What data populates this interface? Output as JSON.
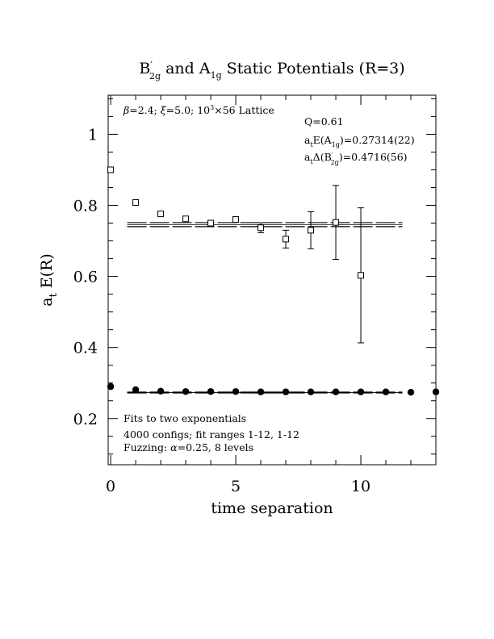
{
  "chart_data": {
    "type": "scatter",
    "title": {
      "b_base": "B",
      "b_sup": "′",
      "b_sub": "2g",
      "mid": " and A",
      "a_sub": "1g",
      "tail": " Static Potentials (R=3)"
    },
    "xlabel": "time separation",
    "ylabel": {
      "main": "a",
      "sub": "t",
      "rest": " E(R)"
    },
    "xlim": [
      -0.1,
      13.0
    ],
    "ylim": [
      0.07,
      1.11
    ],
    "xticks": [
      0,
      5,
      10
    ],
    "xtick_labels": [
      "0",
      "5",
      "10"
    ],
    "yticks": [
      0.2,
      0.4,
      0.6,
      0.8,
      1.0
    ],
    "ytick_labels": [
      "0.2",
      "0.4",
      "0.6",
      "0.8",
      "1"
    ],
    "annotations": {
      "lattice": {
        "beta": "β",
        "beta_val": "=2.4; ",
        "xi": "ξ",
        "xi_val": "=5.0; 10",
        "exp": "3",
        "tail": "×56 Lattice"
      },
      "q": "Q=0.61",
      "energy_a": {
        "pre": "a",
        "pre_sub": "t",
        "mid": "E(A",
        "sub": "1g",
        "tail": ")=0.27314(22)"
      },
      "energy_b": {
        "pre": "a",
        "pre_sub": "t",
        "mid": "Δ(B",
        "sup": "′",
        "sub": "2g",
        "tail": ")=0.4716(56)"
      },
      "fits": "Fits to two exponentials",
      "configs": "4000 configs; fit ranges 1-12, 1-12",
      "fuzzing": {
        "pre": "Fuzzing: ",
        "alpha": "α",
        "tail": "=0.25, 8 levels"
      }
    },
    "series": [
      {
        "marker": "open-square",
        "x": [
          0,
          1,
          2,
          3,
          4,
          5,
          6,
          7,
          8,
          9,
          10
        ],
        "y": [
          0.9,
          0.808,
          0.776,
          0.762,
          0.75,
          0.76,
          0.737,
          0.705,
          0.73,
          0.752,
          0.603
        ],
        "err": [
          0.002,
          0.003,
          0.004,
          0.005,
          0.006,
          0.008,
          0.014,
          0.025,
          0.052,
          0.104,
          0.19
        ]
      },
      {
        "marker": "filled-circle",
        "x": [
          0,
          1,
          2,
          3,
          4,
          5,
          6,
          7,
          8,
          9,
          10,
          11,
          12,
          13
        ],
        "y": [
          0.29,
          0.281,
          0.277,
          0.276,
          0.276,
          0.276,
          0.275,
          0.275,
          0.275,
          0.275,
          0.275,
          0.275,
          0.274,
          0.275
        ],
        "err": [
          0.0008,
          0.0006,
          0.0006,
          0.0006,
          0.0006,
          0.0006,
          0.0006,
          0.0006,
          0.0006,
          0.0006,
          0.0006,
          0.0006,
          0.0006,
          0.0006
        ]
      }
    ],
    "fit_bands": [
      {
        "x_range": [
          0.5,
          11.5
        ],
        "center": 0.7458,
        "half_width": 0.0056
      },
      {
        "x_range": [
          0.5,
          11.5
        ],
        "center": 0.27314,
        "half_width": 0.0012
      }
    ]
  }
}
